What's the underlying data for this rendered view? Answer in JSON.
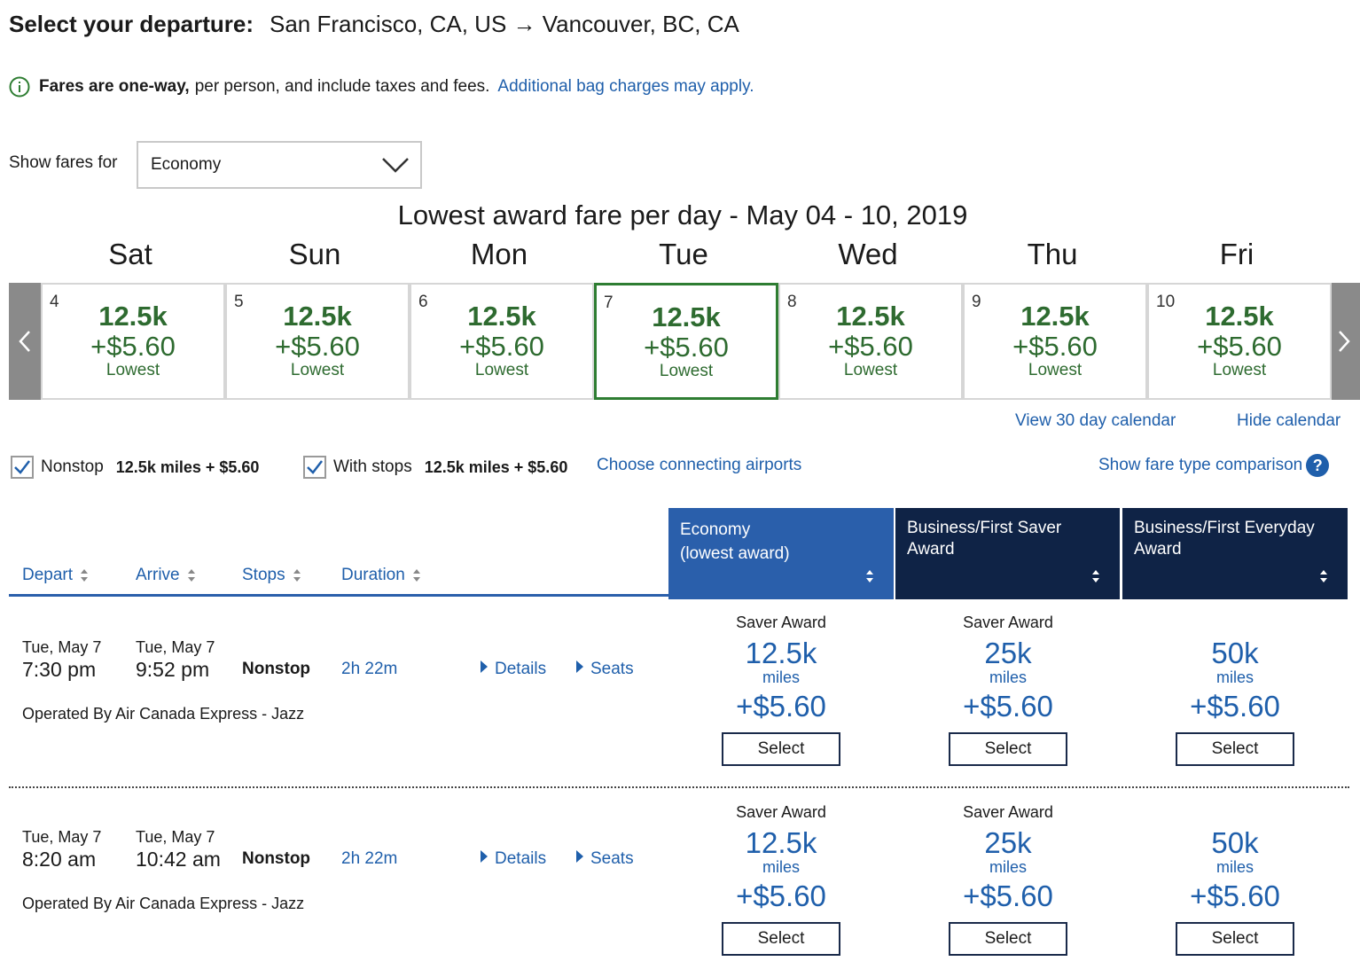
{
  "header": {
    "lead": "Select your departure:",
    "route": "San Francisco, CA, US → Vancouver, BC, CA"
  },
  "notice": {
    "bold": "Fares are one-way,",
    "text": "per person, and include taxes and fees.",
    "link": "Additional bag charges may apply."
  },
  "fare_filter": {
    "label": "Show fares for",
    "selected": "Economy"
  },
  "calendar": {
    "title": "Lowest award fare per day - May 04 - 10, 2019",
    "days": [
      {
        "dow": "Sat",
        "num": "4",
        "miles": "12.5k",
        "fee": "+$5.60",
        "tag": "Lowest"
      },
      {
        "dow": "Sun",
        "num": "5",
        "miles": "12.5k",
        "fee": "+$5.60",
        "tag": "Lowest"
      },
      {
        "dow": "Mon",
        "num": "6",
        "miles": "12.5k",
        "fee": "+$5.60",
        "tag": "Lowest"
      },
      {
        "dow": "Tue",
        "num": "7",
        "miles": "12.5k",
        "fee": "+$5.60",
        "tag": "Lowest"
      },
      {
        "dow": "Wed",
        "num": "8",
        "miles": "12.5k",
        "fee": "+$5.60",
        "tag": "Lowest"
      },
      {
        "dow": "Thu",
        "num": "9",
        "miles": "12.5k",
        "fee": "+$5.60",
        "tag": "Lowest"
      },
      {
        "dow": "Fri",
        "num": "10",
        "miles": "12.5k",
        "fee": "+$5.60",
        "tag": "Lowest"
      }
    ],
    "view_30": "View 30 day calendar",
    "hide": "Hide calendar"
  },
  "filters": {
    "nonstop_label": "Nonstop",
    "nonstop_price": "12.5k miles + $5.60",
    "stops_label": "With stops",
    "stops_price": "12.5k miles + $5.60",
    "connecting": "Choose connecting airports",
    "comparison": "Show fare type comparison",
    "help_glyph": "?"
  },
  "columns": {
    "depart": "Depart",
    "arrive": "Arrive",
    "stops": "Stops",
    "duration": "Duration",
    "econ_line1": "Economy",
    "econ_line2": "(lowest award)",
    "saver": "Business/First Saver Award",
    "everyday": "Business/First Everyday Award"
  },
  "flights": [
    {
      "dep_date": "Tue, May 7",
      "dep_time": "7:30 pm",
      "arr_date": "Tue, May 7",
      "arr_time": "9:52 pm",
      "stops": "Nonstop",
      "duration": "2h 22m",
      "details": "Details",
      "seats": "Seats",
      "operator": "Operated By Air Canada Express - Jazz",
      "fares": [
        {
          "type": "Saver Award",
          "miles": "12.5k",
          "unit": "miles",
          "fee": "+$5.60",
          "button": "Select"
        },
        {
          "type": "Saver Award",
          "miles": "25k",
          "unit": "miles",
          "fee": "+$5.60",
          "button": "Select"
        },
        {
          "type": "",
          "miles": "50k",
          "unit": "miles",
          "fee": "+$5.60",
          "button": "Select"
        }
      ]
    },
    {
      "dep_date": "Tue, May 7",
      "dep_time": "8:20 am",
      "arr_date": "Tue, May 7",
      "arr_time": "10:42 am",
      "stops": "Nonstop",
      "duration": "2h 22m",
      "details": "Details",
      "seats": "Seats",
      "operator": "Operated By Air Canada Express - Jazz",
      "fares": [
        {
          "type": "Saver Award",
          "miles": "12.5k",
          "unit": "miles",
          "fee": "+$5.60",
          "button": "Select"
        },
        {
          "type": "Saver Award",
          "miles": "25k",
          "unit": "miles",
          "fee": "+$5.60",
          "button": "Select"
        },
        {
          "type": "",
          "miles": "50k",
          "unit": "miles",
          "fee": "+$5.60",
          "button": "Select"
        }
      ]
    }
  ],
  "colors": {
    "link_blue": "#1f5fab",
    "fare_green": "#2e6b30",
    "economy_header": "#2a5fab",
    "premium_header": "#0f2346"
  }
}
